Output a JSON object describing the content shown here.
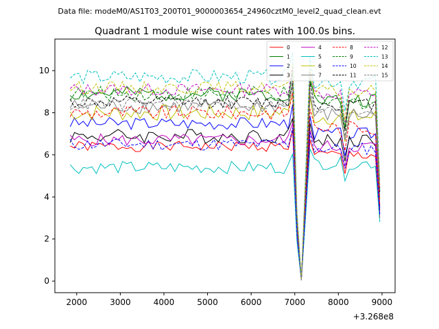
{
  "chart_data": {
    "type": "line",
    "suptitle": "Data file: modeM0/AS1T03_200T01_9000003654_24960cztM0_level2_quad_clean.evt",
    "title": "Quadrant 1 module wise count rates with 100.0s bins.",
    "xlabel": "",
    "ylabel": "",
    "x_offset_label": "+3.268e8",
    "x_ticks": [
      2000,
      3000,
      4000,
      5000,
      6000,
      7000,
      8000,
      9000
    ],
    "y_ticks": [
      0,
      2,
      4,
      6,
      8,
      10
    ],
    "xlim": [
      1500,
      9300
    ],
    "ylim": [
      -0.55,
      11.5
    ],
    "x_start": 1850,
    "x_step": 100,
    "x_end": 8950,
    "dip_indices": [
      53
    ],
    "series": [
      {
        "name": "0",
        "color": "#ff0000",
        "dash": "solid",
        "base": 6.4,
        "post": 6.0,
        "amp": 0.25,
        "seed": 1
      },
      {
        "name": "1",
        "color": "#008000",
        "dash": "solid",
        "base": 8.9,
        "post": 8.6,
        "amp": 0.35,
        "seed": 2
      },
      {
        "name": "2",
        "color": "#0000ff",
        "dash": "solid",
        "base": 7.5,
        "post": 7.0,
        "amp": 0.3,
        "seed": 3
      },
      {
        "name": "3",
        "color": "#000000",
        "dash": "solid",
        "base": 6.9,
        "post": 6.7,
        "amp": 0.35,
        "seed": 4
      },
      {
        "name": "4",
        "color": "#bf00bf",
        "dash": "solid",
        "base": 6.7,
        "post": 6.4,
        "amp": 0.3,
        "seed": 5
      },
      {
        "name": "5",
        "color": "#00bfbf",
        "dash": "solid",
        "base": 5.4,
        "post": 5.6,
        "amp": 0.3,
        "seed": 6
      },
      {
        "name": "6",
        "color": "#bfbf00",
        "dash": "solid",
        "base": 8.0,
        "post": 7.8,
        "amp": 0.4,
        "seed": 7
      },
      {
        "name": "7",
        "color": "#808080",
        "dash": "solid",
        "base": 8.3,
        "post": 7.9,
        "amp": 0.35,
        "seed": 8
      },
      {
        "name": "8",
        "color": "#ff0000",
        "dash": "dashed",
        "base": 8.0,
        "post": 7.3,
        "amp": 0.35,
        "seed": 9
      },
      {
        "name": "9",
        "color": "#008000",
        "dash": "dashed",
        "base": 8.9,
        "post": 8.5,
        "amp": 0.35,
        "seed": 10
      },
      {
        "name": "10",
        "color": "#0000ff",
        "dash": "dashed",
        "base": 6.5,
        "post": 6.3,
        "amp": 0.3,
        "seed": 11
      },
      {
        "name": "11",
        "color": "#000000",
        "dash": "dashed",
        "base": 8.5,
        "post": 8.4,
        "amp": 0.3,
        "seed": 12
      },
      {
        "name": "12",
        "color": "#bf00bf",
        "dash": "dashed",
        "base": 9.1,
        "post": 8.9,
        "amp": 0.3,
        "seed": 13
      },
      {
        "name": "13",
        "color": "#00bfbf",
        "dash": "dashed",
        "base": 9.7,
        "post": 9.5,
        "amp": 0.35,
        "seed": 14
      },
      {
        "name": "14",
        "color": "#bfbf00",
        "dash": "dashed",
        "base": 9.2,
        "post": 9.0,
        "amp": 0.3,
        "seed": 15
      },
      {
        "name": "15",
        "color": "#808080",
        "dash": "dashed",
        "base": 8.4,
        "post": 8.1,
        "amp": 0.3,
        "seed": 16
      }
    ]
  }
}
